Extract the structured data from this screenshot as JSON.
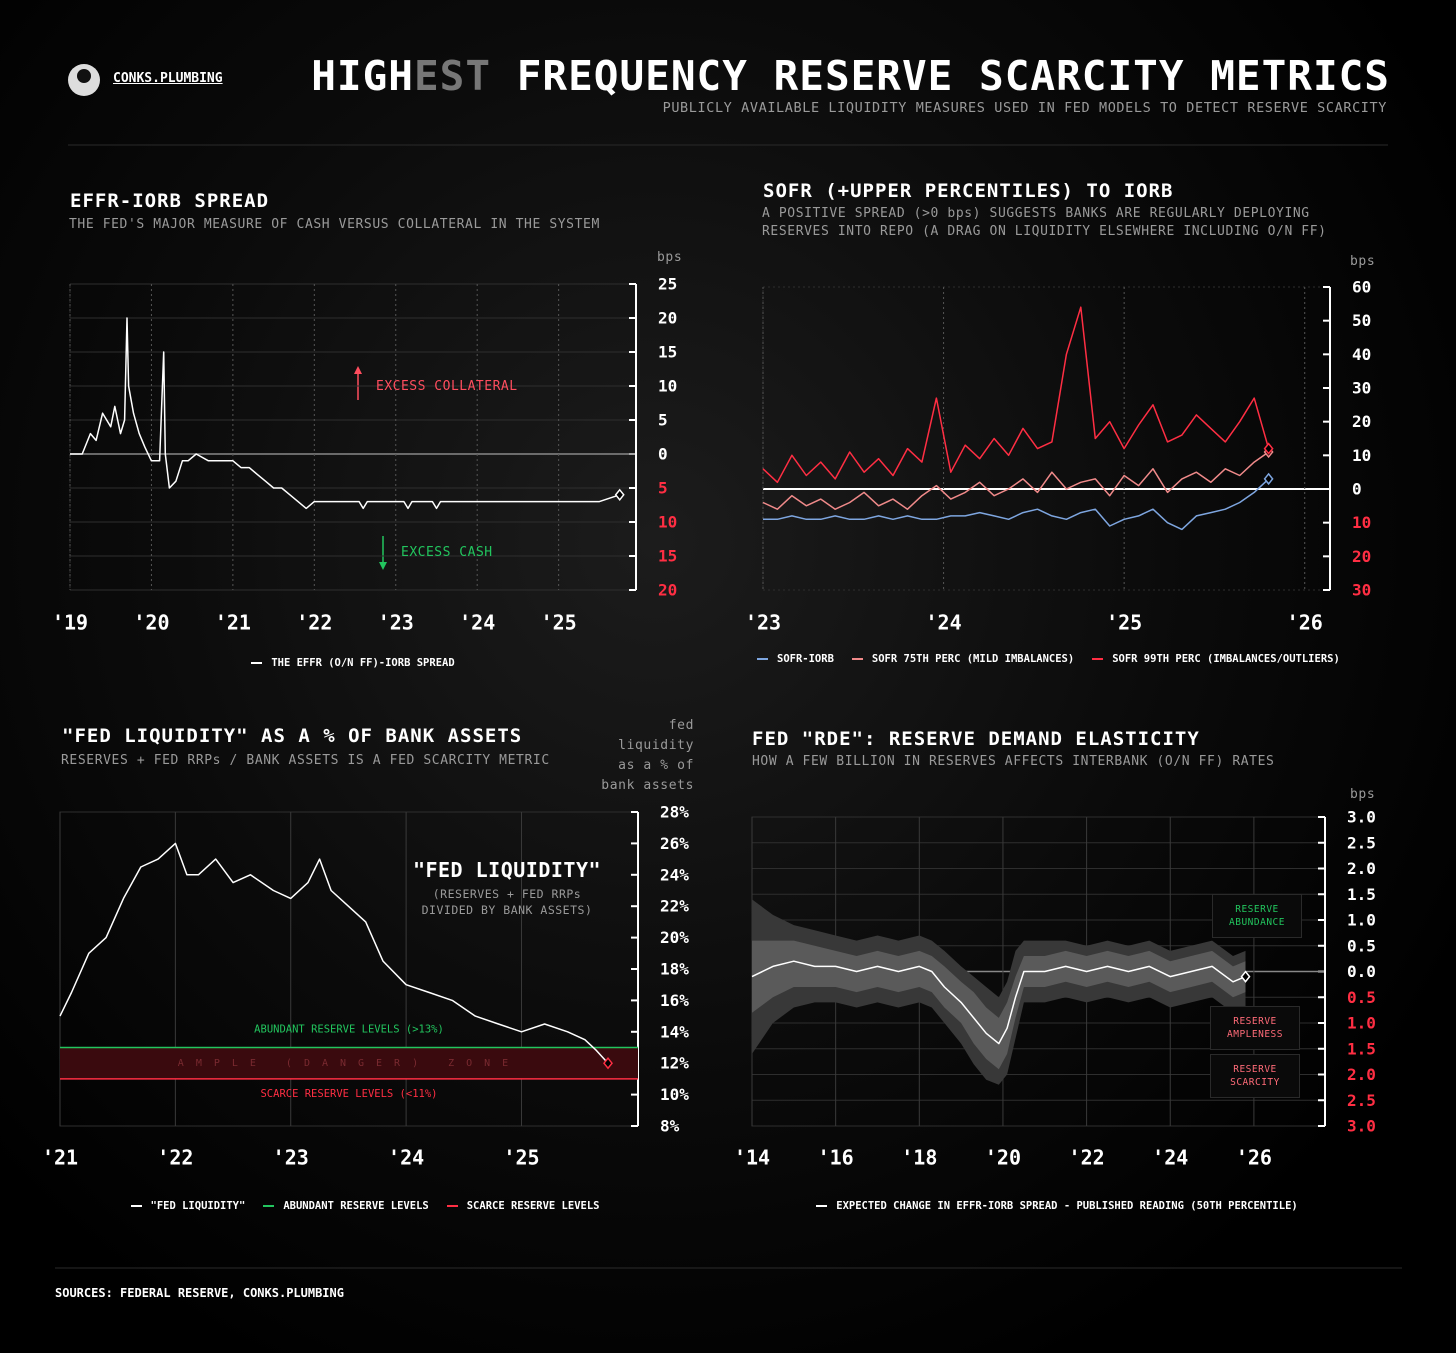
{
  "header": {
    "brand": "CONKS.PLUMBING",
    "title_parts": [
      "HIGH",
      "EST",
      " FREQUENCY RESERVE SCARCITY METRICS"
    ],
    "subtitle": "PUBLICLY AVAILABLE LIQUIDITY MEASURES USED IN FED MODELS TO DETECT RESERVE SCARCITY"
  },
  "chart_data": [
    {
      "type": "line",
      "title": "EFFR-IORB SPREAD",
      "subtitle": "THE FED'S MAJOR MEASURE OF CASH VERSUS COLLATERAL IN THE SYSTEM",
      "y_unit": "bps",
      "x": [
        2019.0,
        2019.15,
        2019.25,
        2019.32,
        2019.4,
        2019.5,
        2019.55,
        2019.62,
        2019.67,
        2019.7,
        2019.72,
        2019.78,
        2019.85,
        2019.92,
        2020.0,
        2020.1,
        2020.15,
        2020.17,
        2020.22,
        2020.3,
        2020.38,
        2020.45,
        2020.55,
        2020.7,
        2020.85,
        2021.0,
        2021.1,
        2021.2,
        2021.3,
        2021.4,
        2021.5,
        2021.6,
        2021.7,
        2021.8,
        2021.9,
        2022.0,
        2022.3,
        2022.55,
        2022.6,
        2022.65,
        2023.1,
        2023.15,
        2023.2,
        2023.45,
        2023.5,
        2023.55,
        2024.0,
        2024.5,
        2025.0,
        2025.5,
        2025.75
      ],
      "series": [
        {
          "name": "THE EFFR (O/N FF)-IORB SPREAD",
          "color": "#ffffff",
          "values": [
            0,
            0,
            3,
            2,
            6,
            4,
            7,
            3,
            5,
            20,
            10,
            6,
            3,
            1,
            -1,
            -1,
            15,
            0,
            -5,
            -4,
            -1,
            -1,
            0,
            -1,
            -1,
            -1,
            -2,
            -2,
            -3,
            -4,
            -5,
            -5,
            -6,
            -7,
            -8,
            -7,
            -7,
            -7,
            -8,
            -7,
            -7,
            -8,
            -7,
            -7,
            -8,
            -7,
            -7,
            -7,
            -7,
            -7,
            -6
          ]
        }
      ],
      "xlim": [
        2019,
        2025.95
      ],
      "xticks": [
        {
          "value": 2019,
          "label": "'19"
        },
        {
          "value": 2020,
          "label": "'20"
        },
        {
          "value": 2021,
          "label": "'21"
        },
        {
          "value": 2022,
          "label": "'22"
        },
        {
          "value": 2023,
          "label": "'23"
        },
        {
          "value": 2024,
          "label": "'24"
        },
        {
          "value": 2025,
          "label": "'25"
        }
      ],
      "ylim": [
        -20,
        25
      ],
      "yticks": [
        25,
        20,
        15,
        10,
        5,
        0,
        {
          "value": -5,
          "label": "5"
        },
        {
          "value": -10,
          "label": "10"
        },
        {
          "value": -15,
          "label": "15"
        },
        {
          "value": -20,
          "label": "20"
        }
      ],
      "grid": {
        "x": true,
        "y": true,
        "dashed": true
      },
      "zero_line": true,
      "negative_tick_color": "#ff2e43",
      "annotations": [
        {
          "text": "EXCESS COLLATERAL",
          "color": "#ff4d5e"
        },
        {
          "text": "EXCESS CASH",
          "color": "#22c55e"
        }
      ]
    },
    {
      "type": "line",
      "title": "SOFR (+UPPER PERCENTILES) TO IORB",
      "subtitle": "A POSITIVE SPREAD (>0 bps) SUGGESTS BANKS ARE REGULARLY DEPLOYING RESERVES INTO REPO (A DRAG ON LIQUIDITY ELSEWHERE INCLUDING O/N FF)",
      "y_unit": "bps",
      "x": [
        2023.0,
        2023.08,
        2023.16,
        2023.24,
        2023.32,
        2023.4,
        2023.48,
        2023.56,
        2023.64,
        2023.72,
        2023.8,
        2023.88,
        2023.96,
        2024.04,
        2024.12,
        2024.2,
        2024.28,
        2024.36,
        2024.44,
        2024.52,
        2024.6,
        2024.68,
        2024.76,
        2024.84,
        2024.92,
        2025.0,
        2025.08,
        2025.16,
        2025.24,
        2025.32,
        2025.4,
        2025.48,
        2025.56,
        2025.64,
        2025.72,
        2025.8
      ],
      "series": [
        {
          "name": "SOFR-IORB",
          "color": "#7ea6e0",
          "values": [
            -9,
            -9,
            -8,
            -9,
            -9,
            -8,
            -9,
            -9,
            -8,
            -9,
            -8,
            -9,
            -9,
            -8,
            -8,
            -7,
            -8,
            -9,
            -7,
            -6,
            -8,
            -9,
            -7,
            -6,
            -11,
            -9,
            -8,
            -6,
            -10,
            -12,
            -8,
            -7,
            -6,
            -4,
            -1,
            3
          ]
        },
        {
          "name": "SOFR 75TH PERC (MILD IMBALANCES)",
          "color": "#f08a8a",
          "values": [
            -4,
            -6,
            -2,
            -5,
            -3,
            -6,
            -4,
            -1,
            -5,
            -3,
            -6,
            -2,
            1,
            -3,
            -1,
            2,
            -2,
            0,
            3,
            -1,
            5,
            0,
            2,
            3,
            -2,
            4,
            1,
            6,
            -1,
            3,
            5,
            2,
            6,
            4,
            8,
            11
          ]
        },
        {
          "name": "SOFR 99TH PERC (IMBALANCES/OUTLIERS)",
          "color": "#ff2e43",
          "values": [
            6,
            2,
            10,
            4,
            8,
            3,
            11,
            5,
            9,
            4,
            12,
            8,
            27,
            5,
            13,
            9,
            15,
            10,
            18,
            12,
            14,
            40,
            54,
            15,
            20,
            12,
            19,
            25,
            14,
            16,
            22,
            18,
            14,
            20,
            27,
            12
          ]
        }
      ],
      "xlim": [
        2023,
        2026.14
      ],
      "xticks": [
        {
          "value": 2023,
          "label": "'23"
        },
        {
          "value": 2024,
          "label": "'24"
        },
        {
          "value": 2025,
          "label": "'25"
        },
        {
          "value": 2026,
          "label": "'26"
        }
      ],
      "ylim": [
        -30,
        60
      ],
      "yticks": [
        60,
        50,
        40,
        30,
        20,
        10,
        0,
        {
          "value": -10,
          "label": "10"
        },
        {
          "value": -20,
          "label": "20"
        },
        {
          "value": -30,
          "label": "30"
        }
      ],
      "grid": {
        "x": true,
        "y": false,
        "dashed": true
      },
      "zero_line": true,
      "negative_tick_color": "#ff2e43"
    },
    {
      "type": "line",
      "title": "\"FED LIQUIDITY\" AS A % OF BANK ASSETS",
      "subtitle": "RESERVES + FED RRPs / BANK ASSETS IS A FED SCARCITY METRIC",
      "y_label": "fed liquidity as a % of bank assets",
      "x": [
        2021.0,
        2021.1,
        2021.25,
        2021.4,
        2021.55,
        2021.7,
        2021.85,
        2022.0,
        2022.1,
        2022.2,
        2022.35,
        2022.5,
        2022.65,
        2022.85,
        2023.0,
        2023.15,
        2023.25,
        2023.35,
        2023.5,
        2023.65,
        2023.8,
        2024.0,
        2024.2,
        2024.4,
        2024.6,
        2024.8,
        2025.0,
        2025.2,
        2025.4,
        2025.55,
        2025.65,
        2025.75
      ],
      "series": [
        {
          "name": "\"FED LIQUIDITY\"",
          "color": "#ffffff",
          "values": [
            15,
            16.5,
            19,
            20,
            22.5,
            24.5,
            25,
            26,
            24,
            24,
            25,
            23.5,
            24,
            23,
            22.5,
            23.5,
            25,
            23,
            22,
            21,
            18.5,
            17,
            16.5,
            16,
            15,
            14.5,
            14,
            14.5,
            14,
            13.5,
            12.8,
            12
          ]
        }
      ],
      "end_marker_color": "#ff2e43",
      "reference_lines": [
        {
          "name": "ABUNDANT RESERVE LEVELS",
          "value": 13,
          "color": "#22c55e",
          "label": "ABUNDANT RESERVE LEVELS (>13%)"
        },
        {
          "name": "SCARCE RESERVE LEVELS",
          "value": 11,
          "color": "#ff2e43",
          "label": "SCARCE RESERVE LEVELS (<11%)"
        }
      ],
      "zone_label": "AMPLE (DANGER) ZONE",
      "zone_color": "#3a0a0e",
      "xlim": [
        2021,
        2026.01
      ],
      "xticks": [
        {
          "value": 2021,
          "label": "'21"
        },
        {
          "value": 2022,
          "label": "'22"
        },
        {
          "value": 2023,
          "label": "'23"
        },
        {
          "value": 2024,
          "label": "'24"
        },
        {
          "value": 2025,
          "label": "'25"
        }
      ],
      "ylim": [
        8,
        28
      ],
      "yticks": [
        {
          "value": 28,
          "label": "28%"
        },
        {
          "value": 26,
          "label": "26%"
        },
        {
          "value": 24,
          "label": "24%"
        },
        {
          "value": 22,
          "label": "22%"
        },
        {
          "value": 20,
          "label": "20%"
        },
        {
          "value": 18,
          "label": "18%"
        },
        {
          "value": 16,
          "label": "16%"
        },
        {
          "value": 14,
          "label": "14%"
        },
        {
          "value": 12,
          "label": "12%"
        },
        {
          "value": 10,
          "label": "10%"
        },
        {
          "value": 8,
          "label": "8%"
        }
      ],
      "grid": {
        "x": true,
        "y": false,
        "dashed": false
      },
      "zero_line": false,
      "annotations": [
        {
          "text": "\"FED LIQUIDITY\"",
          "color": "#ffffff"
        },
        {
          "text": "(RESERVES + FED RRPs DIVIDED BY BANK ASSETS)",
          "color": "#9a9a9a"
        }
      ]
    },
    {
      "type": "line",
      "title": "FED \"RDE\": RESERVE DEMAND ELASTICITY",
      "subtitle": "HOW A FEW BILLION IN RESERVES AFFECTS INTERBANK (O/N FF) RATES",
      "y_unit": "bps",
      "x": [
        2014,
        2014.5,
        2015,
        2015.5,
        2016,
        2016.5,
        2017,
        2017.5,
        2018,
        2018.3,
        2018.6,
        2019,
        2019.3,
        2019.6,
        2019.9,
        2020.1,
        2020.3,
        2020.5,
        2021,
        2021.5,
        2022,
        2022.5,
        2023,
        2023.5,
        2024,
        2024.5,
        2025,
        2025.5,
        2025.8
      ],
      "series": [
        {
          "name": "EXPECTED CHANGE IN EFFR-IORB SPREAD - PUBLISHED READING (50TH PERCENTILE)",
          "color": "#ffffff",
          "values": [
            -0.1,
            0.1,
            0.2,
            0.1,
            0.1,
            0,
            0.1,
            0,
            0.1,
            0,
            -0.3,
            -0.6,
            -0.9,
            -1.2,
            -1.4,
            -1.1,
            -0.5,
            0,
            0,
            0.1,
            0,
            0.1,
            0,
            0.1,
            -0.1,
            0,
            0.1,
            -0.2,
            -0.1
          ]
        }
      ],
      "bands": [
        {
          "color": "#383838",
          "upper": [
            1.4,
            1.1,
            0.9,
            0.8,
            0.7,
            0.6,
            0.7,
            0.6,
            0.7,
            0.6,
            0.4,
            0.1,
            -0.1,
            -0.3,
            -0.5,
            -0.2,
            0.4,
            0.6,
            0.6,
            0.6,
            0.5,
            0.6,
            0.5,
            0.6,
            0.4,
            0.5,
            0.6,
            0.3,
            0.4
          ],
          "lower": [
            -1.6,
            -1.0,
            -0.7,
            -0.6,
            -0.6,
            -0.7,
            -0.6,
            -0.7,
            -0.6,
            -0.7,
            -1.0,
            -1.4,
            -1.8,
            -2.1,
            -2.2,
            -2.0,
            -1.3,
            -0.6,
            -0.6,
            -0.5,
            -0.6,
            -0.5,
            -0.6,
            -0.5,
            -0.7,
            -0.6,
            -0.5,
            -0.8,
            -0.7
          ]
        },
        {
          "color": "#5a5a5a",
          "upper": [
            0.6,
            0.6,
            0.6,
            0.5,
            0.4,
            0.3,
            0.4,
            0.3,
            0.4,
            0.3,
            0.1,
            -0.2,
            -0.4,
            -0.7,
            -0.9,
            -0.6,
            -0.1,
            0.3,
            0.3,
            0.4,
            0.3,
            0.4,
            0.3,
            0.4,
            0.2,
            0.3,
            0.4,
            0.1,
            0.2
          ],
          "lower": [
            -0.8,
            -0.5,
            -0.3,
            -0.3,
            -0.3,
            -0.4,
            -0.3,
            -0.4,
            -0.3,
            -0.4,
            -0.7,
            -1.0,
            -1.4,
            -1.7,
            -1.9,
            -1.6,
            -0.9,
            -0.3,
            -0.3,
            -0.2,
            -0.3,
            -0.2,
            -0.3,
            -0.2,
            -0.4,
            -0.3,
            -0.2,
            -0.5,
            -0.4
          ]
        }
      ],
      "xlim": [
        2014,
        2027.7
      ],
      "xticks": [
        {
          "value": 2014,
          "label": "'14"
        },
        {
          "value": 2016,
          "label": "'16"
        },
        {
          "value": 2018,
          "label": "'18"
        },
        {
          "value": 2020,
          "label": "'20"
        },
        {
          "value": 2022,
          "label": "'22"
        },
        {
          "value": 2024,
          "label": "'24"
        },
        {
          "value": 2026,
          "label": "'26"
        }
      ],
      "ylim": [
        -3,
        3
      ],
      "yticks": [
        {
          "value": 3,
          "label": "3.0"
        },
        2.5,
        {
          "value": 2,
          "label": "2.0"
        },
        1.5,
        {
          "value": 1,
          "label": "1.0"
        },
        0.5,
        {
          "value": 0,
          "label": "0.0"
        },
        {
          "value": -0.5,
          "label": "0.5"
        },
        {
          "value": -1,
          "label": "1.0"
        },
        {
          "value": -1.5,
          "label": "1.5"
        },
        {
          "value": -2,
          "label": "2.0"
        },
        {
          "value": -2.5,
          "label": "2.5"
        },
        {
          "value": -3,
          "label": "3.0"
        }
      ],
      "grid": {
        "x": true,
        "y": true,
        "dashed": false
      },
      "zero_line": true,
      "negative_tick_color": "#ff2e43",
      "annotations": [
        {
          "text": "RESERVE ABUNDANCE",
          "color": "#22c55e"
        },
        {
          "text": "RESERVE AMPLENESS",
          "color": "#ff6b78"
        },
        {
          "text": "RESERVE SCARCITY",
          "color": "#ff6b78"
        }
      ]
    }
  ],
  "footer": {
    "sources": "SOURCES: FEDERAL RESERVE, CONKS.PLUMBING"
  }
}
